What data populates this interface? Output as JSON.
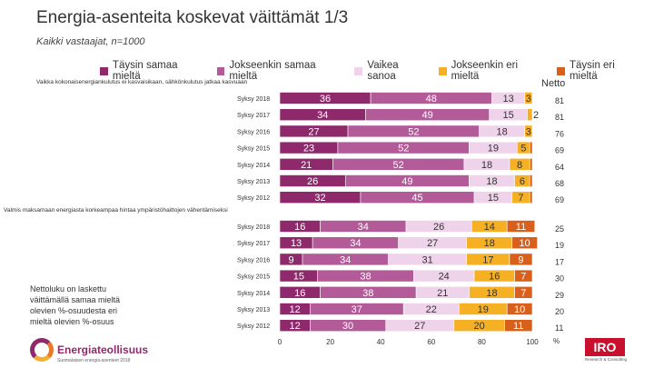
{
  "title": "Energia-asenteita koskevat väittämät 1/3",
  "subtitle": "Kaikki vastaajat, n=1000",
  "netto_label": "Netto",
  "note": "Nettoluku on laskettu väittämällä samaa mieltä olevien %-osuudesta eri mieltä olevien %-osuus",
  "logo": {
    "brand": "Energiateollisuus",
    "small": "Suomalaisen energia-asenteet 2018"
  },
  "iro": {
    "name": "IRO",
    "tag": "Research & Consulting"
  },
  "colors": [
    "#8e2a6b",
    "#b35a98",
    "#eed3ea",
    "#f5b024",
    "#d9601a"
  ],
  "chart_data": {
    "type": "stacked-bar-horizontal",
    "legend": [
      "Täysin samaa mieltä",
      "Jokseenkin samaa mieltä",
      "Vaikea sanoa",
      "Jokseenkin eri mieltä",
      "Täysin eri mieltä"
    ],
    "x_ticks": [
      "0",
      "20",
      "40",
      "60",
      "80",
      "100"
    ],
    "x_unit": "%",
    "xlim": [
      0,
      100
    ],
    "groups": [
      {
        "question": "Vaikka kokonaisenergiankulutus ei kasvaisikaan, sähkönkulutus jatkaa kasvuaan",
        "rows": [
          {
            "label": "Syksy 2018",
            "values": [
              36,
              48,
              13,
              3,
              0
            ],
            "labels": [
              "36",
              "48",
              "13",
              "3",
              ""
            ],
            "netto": "81"
          },
          {
            "label": "Syksy 2017",
            "values": [
              34,
              49,
              15,
              2,
              0
            ],
            "labels": [
              "34",
              "49",
              "15",
              "2",
              ""
            ],
            "netto": "81"
          },
          {
            "label": "Syksy 2016",
            "values": [
              27,
              52,
              18,
              3,
              0
            ],
            "labels": [
              "27",
              "52",
              "18",
              "3",
              ""
            ],
            "netto": "76"
          },
          {
            "label": "Syksy 2015",
            "values": [
              23,
              52,
              19,
              5,
              1
            ],
            "labels": [
              "23",
              "52",
              "19",
              "5",
              ""
            ],
            "netto": "69"
          },
          {
            "label": "Syksy 2014",
            "values": [
              21,
              52,
              18,
              8,
              1
            ],
            "labels": [
              "21",
              "52",
              "18",
              "8",
              ""
            ],
            "netto": "64"
          },
          {
            "label": "Syksy 2013",
            "values": [
              26,
              49,
              18,
              6,
              1
            ],
            "labels": [
              "26",
              "49",
              "18",
              "6",
              ""
            ],
            "netto": "68"
          },
          {
            "label": "Syksy 2012",
            "values": [
              32,
              45,
              15,
              7,
              1
            ],
            "labels": [
              "32",
              "45",
              "15",
              "7",
              ""
            ],
            "netto": "69"
          }
        ]
      },
      {
        "question": "Valmis maksamaan energiasta korkeampaa hintaa ympäristöhaittojen vähentämiseksi",
        "rows": [
          {
            "label": "Syksy 2018",
            "values": [
              16,
              34,
              26,
              14,
              11
            ],
            "labels": [
              "16",
              "34",
              "26",
              "14",
              "11"
            ],
            "netto": "25"
          },
          {
            "label": "Syksy 2017",
            "values": [
              13,
              34,
              27,
              18,
              10
            ],
            "labels": [
              "13",
              "34",
              "27",
              "18",
              "10"
            ],
            "netto": "19"
          },
          {
            "label": "Syksy 2016",
            "values": [
              9,
              34,
              31,
              17,
              9
            ],
            "labels": [
              "9",
              "34",
              "31",
              "17",
              "9"
            ],
            "netto": "17"
          },
          {
            "label": "Syksy 2015",
            "values": [
              15,
              38,
              24,
              16,
              7
            ],
            "labels": [
              "15",
              "38",
              "24",
              "16",
              "7"
            ],
            "netto": "30"
          },
          {
            "label": "Syksy 2014",
            "values": [
              16,
              38,
              21,
              18,
              7
            ],
            "labels": [
              "16",
              "38",
              "21",
              "18",
              "7"
            ],
            "netto": "29"
          },
          {
            "label": "Syksy 2013",
            "values": [
              12,
              37,
              22,
              19,
              10
            ],
            "labels": [
              "12",
              "37",
              "22",
              "19",
              "10"
            ],
            "netto": "20"
          },
          {
            "label": "Syksy 2012",
            "values": [
              12,
              30,
              27,
              20,
              11
            ],
            "labels": [
              "12",
              "30",
              "27",
              "20",
              "11"
            ],
            "netto": "11"
          }
        ]
      }
    ]
  }
}
